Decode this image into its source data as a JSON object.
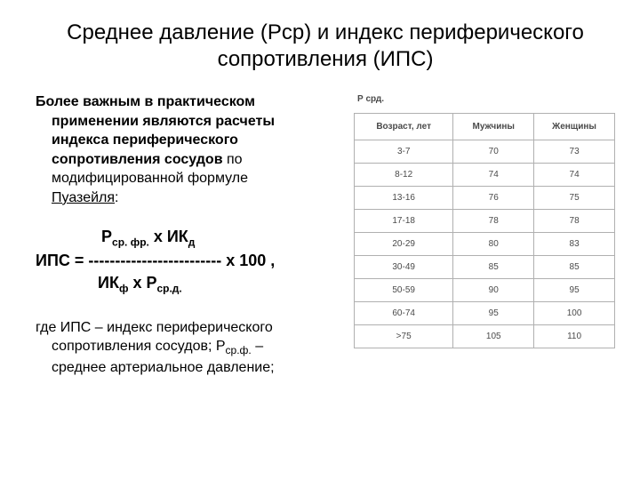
{
  "title": "Среднее давление (Рср) и индекс периферического сопротивления (ИПС)",
  "para1": {
    "l1a": "Более важным в практическом",
    "l2": "применении являются расчеты",
    "l3": "индекса периферического",
    "l4": "сопротивления сосудов",
    "l4b": " по",
    "l5": "модифицированной формуле",
    "l6": "Пуазейля",
    "l6b": ":"
  },
  "formula": {
    "line1a": "Р",
    "line1sub": "ср. фр.",
    "line1b": "  х  ИК",
    "line1sub2": "д",
    "line2": "ИПС = ------------------------- х 100 ,",
    "line3a": "ИК",
    "line3sub": "ф",
    "line3b": "  х Р",
    "line3sub2": "ср.д."
  },
  "para2": {
    "l1": "где ИПС – индекс периферического",
    "l2a": "сопротивления сосудов; Р",
    "l2sub": "ср.ф.",
    "l2b": " –",
    "l3": "среднее артериальное давление;"
  },
  "table": {
    "label": "Р срд.",
    "headers": [
      "Возраст, лет",
      "Мужчины",
      "Женщины"
    ],
    "rows": [
      [
        "3-7",
        "70",
        "73"
      ],
      [
        "8-12",
        "74",
        "74"
      ],
      [
        "13-16",
        "76",
        "75"
      ],
      [
        "17-18",
        "78",
        "78"
      ],
      [
        "20-29",
        "80",
        "83"
      ],
      [
        "30-49",
        "85",
        "85"
      ],
      [
        "50-59",
        "90",
        "95"
      ],
      [
        "60-74",
        "95",
        "100"
      ],
      [
        ">75",
        "105",
        "110"
      ]
    ],
    "header_fontsize": 10,
    "cell_fontsize": 10,
    "border_color": "#b0b0b0",
    "text_color": "#4a4a4a",
    "background_color": "#ffffff"
  },
  "colors": {
    "background": "#ffffff",
    "text": "#000000",
    "table_border": "#b0b0b0"
  }
}
